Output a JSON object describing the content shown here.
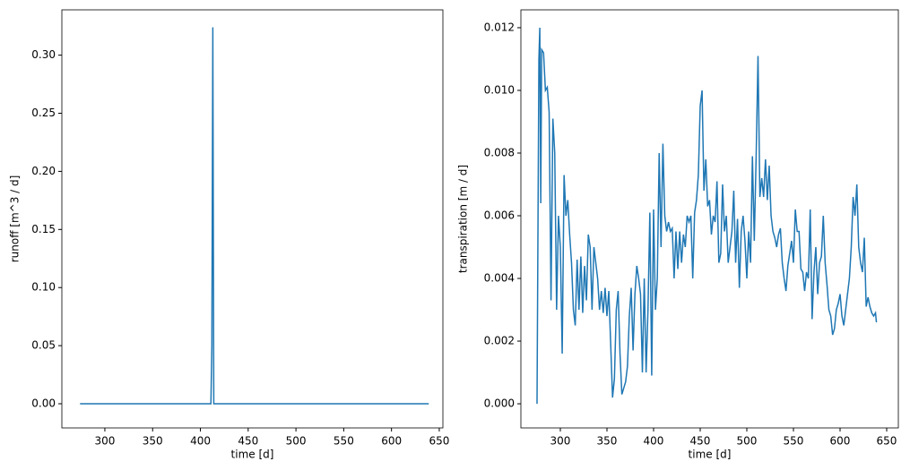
{
  "chart_data": [
    {
      "type": "line",
      "xlabel": "time [d]",
      "ylabel": "runoff [m^3 / d]",
      "color": "#1f77b4",
      "x": [
        274,
        411,
        412,
        413,
        414,
        639
      ],
      "values": [
        0,
        0,
        0.05,
        0.324,
        0,
        0
      ],
      "xlim": [
        255,
        653.8
      ],
      "ylim": [
        -0.0208,
        0.339
      ],
      "xticks": [
        300,
        350,
        400,
        450,
        500,
        550,
        600,
        650
      ],
      "yticks": [
        {
          "value": 0,
          "label": "0.00"
        },
        {
          "value": 0.05,
          "label": "0.05"
        },
        {
          "value": 0.1,
          "label": "0.10"
        },
        {
          "value": 0.15,
          "label": "0.15"
        },
        {
          "value": 0.2,
          "label": "0.20"
        },
        {
          "value": 0.25,
          "label": "0.25"
        },
        {
          "value": 0.3,
          "label": "0.30"
        }
      ]
    },
    {
      "type": "line",
      "xlabel": "time [d]",
      "ylabel": "transpiration [m / d]",
      "color": "#1f77b4",
      "x": [
        275,
        277,
        278,
        279,
        280,
        282,
        284,
        286,
        288,
        290,
        292,
        294,
        296,
        298,
        300,
        302,
        304,
        306,
        308,
        310,
        312,
        314,
        316,
        318,
        320,
        322,
        324,
        326,
        328,
        330,
        332,
        334,
        336,
        338,
        340,
        342,
        344,
        346,
        348,
        350,
        352,
        354,
        356,
        358,
        360,
        362,
        364,
        366,
        368,
        370,
        372,
        374,
        376,
        378,
        380,
        382,
        384,
        386,
        388,
        390,
        392,
        394,
        396,
        398,
        400,
        402,
        404,
        406,
        408,
        410,
        412,
        414,
        416,
        418,
        420,
        422,
        424,
        426,
        428,
        430,
        432,
        434,
        436,
        438,
        440,
        442,
        444,
        446,
        448,
        450,
        452,
        454,
        456,
        458,
        460,
        462,
        464,
        466,
        468,
        470,
        472,
        474,
        476,
        478,
        480,
        482,
        484,
        486,
        488,
        490,
        492,
        494,
        496,
        498,
        500,
        502,
        504,
        506,
        508,
        510,
        512,
        514,
        516,
        518,
        520,
        522,
        524,
        526,
        528,
        530,
        532,
        534,
        536,
        538,
        540,
        542,
        544,
        546,
        548,
        550,
        552,
        554,
        556,
        558,
        560,
        562,
        564,
        566,
        568,
        570,
        572,
        574,
        576,
        578,
        580,
        582,
        584,
        586,
        588,
        590,
        592,
        594,
        596,
        598,
        600,
        602,
        604,
        606,
        608,
        610,
        612,
        614,
        616,
        618,
        620,
        622,
        624,
        626,
        628,
        630,
        632,
        634,
        636,
        638,
        639
      ],
      "values": [
        0.0,
        0.011,
        0.012,
        0.0064,
        0.0113,
        0.0112,
        0.01,
        0.0101,
        0.0093,
        0.0033,
        0.0091,
        0.008,
        0.003,
        0.006,
        0.005,
        0.0016,
        0.0073,
        0.006,
        0.0065,
        0.0054,
        0.0045,
        0.003,
        0.0025,
        0.0046,
        0.003,
        0.0047,
        0.0029,
        0.0044,
        0.0033,
        0.0054,
        0.005,
        0.003,
        0.005,
        0.0045,
        0.004,
        0.003,
        0.0036,
        0.0029,
        0.0037,
        0.0028,
        0.0036,
        0.0019,
        0.0002,
        0.0008,
        0.003,
        0.0036,
        0.0016,
        0.0003,
        0.0005,
        0.0007,
        0.0012,
        0.0028,
        0.0037,
        0.0017,
        0.0035,
        0.0044,
        0.004,
        0.0035,
        0.001,
        0.004,
        0.001,
        0.003,
        0.0061,
        0.0009,
        0.0062,
        0.003,
        0.004,
        0.008,
        0.005,
        0.0083,
        0.006,
        0.0055,
        0.0058,
        0.0055,
        0.0056,
        0.004,
        0.0055,
        0.0043,
        0.0055,
        0.0045,
        0.0054,
        0.005,
        0.006,
        0.0058,
        0.006,
        0.004,
        0.0061,
        0.0065,
        0.0073,
        0.0095,
        0.01,
        0.0068,
        0.0078,
        0.0063,
        0.0065,
        0.0054,
        0.006,
        0.0058,
        0.0071,
        0.0045,
        0.0048,
        0.007,
        0.0055,
        0.006,
        0.0045,
        0.005,
        0.0055,
        0.0068,
        0.0045,
        0.0059,
        0.0037,
        0.0055,
        0.006,
        0.0052,
        0.004,
        0.0055,
        0.0045,
        0.0079,
        0.0052,
        0.0079,
        0.0111,
        0.0066,
        0.0072,
        0.0066,
        0.0078,
        0.0065,
        0.0076,
        0.006,
        0.0055,
        0.0053,
        0.005,
        0.0054,
        0.0056,
        0.0045,
        0.004,
        0.0036,
        0.0044,
        0.0048,
        0.0052,
        0.0045,
        0.0062,
        0.0055,
        0.0055,
        0.0043,
        0.0042,
        0.0036,
        0.0042,
        0.004,
        0.0062,
        0.0027,
        0.0042,
        0.005,
        0.0035,
        0.0045,
        0.0047,
        0.006,
        0.0045,
        0.0038,
        0.003,
        0.0028,
        0.0022,
        0.0024,
        0.003,
        0.0032,
        0.0035,
        0.0028,
        0.0025,
        0.003,
        0.0035,
        0.004,
        0.005,
        0.0066,
        0.006,
        0.007,
        0.005,
        0.0045,
        0.0042,
        0.0053,
        0.0031,
        0.0034,
        0.0031,
        0.0029,
        0.0028,
        0.0029,
        0.0026
      ],
      "xlim": [
        257.7,
        662.5
      ],
      "ylim": [
        -0.00077,
        0.01257
      ],
      "xticks": [
        300,
        350,
        400,
        450,
        500,
        550,
        600,
        650
      ],
      "yticks": [
        {
          "value": 0,
          "label": "0.000"
        },
        {
          "value": 0.002,
          "label": "0.002"
        },
        {
          "value": 0.004,
          "label": "0.004"
        },
        {
          "value": 0.006,
          "label": "0.006"
        },
        {
          "value": 0.008,
          "label": "0.008"
        },
        {
          "value": 0.01,
          "label": "0.010"
        },
        {
          "value": 0.012,
          "label": "0.012"
        }
      ]
    }
  ]
}
